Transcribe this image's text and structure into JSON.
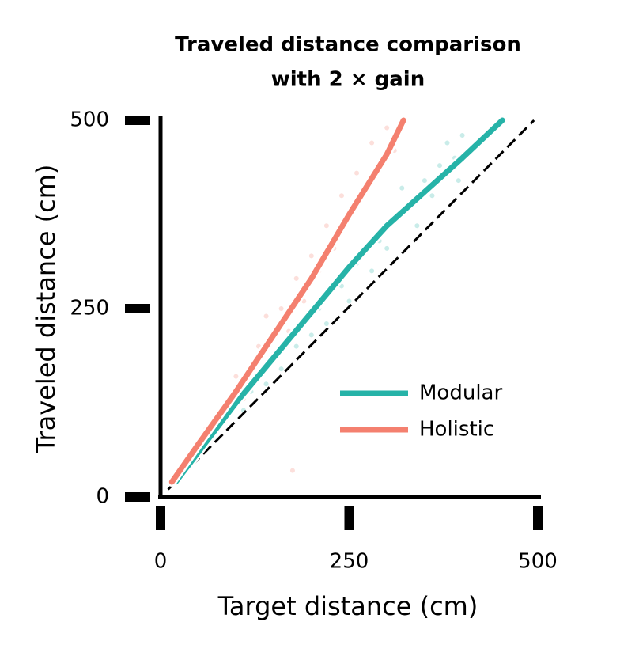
{
  "chart_data": {
    "type": "line",
    "title": "Traveled distance comparison",
    "subtitle": "with 2 × gain",
    "x_label": "Target distance (cm)",
    "y_label": "Traveled distance (cm)",
    "xlim": [
      0,
      500
    ],
    "ylim": [
      0,
      500
    ],
    "xticks": [
      0,
      250,
      500
    ],
    "yticks": [
      0,
      250,
      500
    ],
    "legend": "lower right",
    "reference_line": {
      "x": [
        10,
        495
      ],
      "values": [
        10,
        500
      ],
      "color": "#000000",
      "dash": true
    },
    "series": [
      {
        "name": "Modular",
        "color": "#26b3a8",
        "x": [
          20,
          100,
          150,
          200,
          250,
          300,
          350,
          400,
          453
        ],
        "values": [
          20,
          125,
          185,
          245,
          305,
          360,
          405,
          450,
          500
        ],
        "scatter_x": [
          110,
          120,
          140,
          150,
          160,
          180,
          200,
          210,
          220,
          240,
          250,
          260,
          280,
          290,
          300,
          310,
          330,
          340,
          350,
          360,
          370,
          380,
          390,
          400,
          395,
          320,
          270
        ],
        "scatter_y": [
          115,
          140,
          150,
          190,
          170,
          200,
          215,
          250,
          230,
          280,
          260,
          310,
          300,
          340,
          330,
          370,
          390,
          360,
          420,
          400,
          440,
          470,
          450,
          480,
          420,
          410,
          330
        ]
      },
      {
        "name": "Holistic",
        "color": "#f4806f",
        "x": [
          15,
          50,
          100,
          150,
          200,
          250,
          300,
          322
        ],
        "values": [
          20,
          70,
          140,
          215,
          290,
          375,
          455,
          500
        ],
        "scatter_x": [
          60,
          80,
          100,
          110,
          130,
          150,
          160,
          170,
          180,
          190,
          200,
          210,
          220,
          230,
          240,
          250,
          260,
          270,
          280,
          290,
          300,
          310,
          175,
          320,
          140
        ],
        "scatter_y": [
          90,
          110,
          160,
          130,
          200,
          180,
          250,
          220,
          290,
          260,
          320,
          300,
          360,
          330,
          400,
          370,
          430,
          410,
          470,
          440,
          490,
          460,
          35,
          495,
          240
        ]
      }
    ]
  }
}
